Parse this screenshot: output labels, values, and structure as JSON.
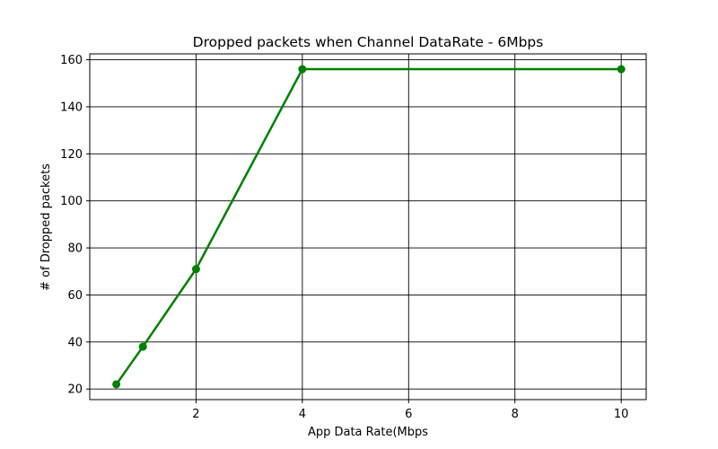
{
  "chart_data": {
    "type": "line",
    "title": "Dropped packets when Channel DataRate - 6Mbps",
    "xlabel": "App Data Rate(Mbps",
    "ylabel": "# of Dropped packets",
    "xlim": [
      0.0,
      10.47
    ],
    "ylim": [
      15.5,
      162.5
    ],
    "xticks": [
      2,
      4,
      6,
      8,
      10
    ],
    "yticks": [
      20,
      40,
      60,
      80,
      100,
      120,
      140,
      160
    ],
    "grid": true,
    "series": [
      {
        "color": "#008000",
        "marker": "circle",
        "x": [
          0.5,
          1,
          2,
          4,
          10
        ],
        "y": [
          22,
          38,
          71,
          156,
          156
        ]
      }
    ]
  }
}
